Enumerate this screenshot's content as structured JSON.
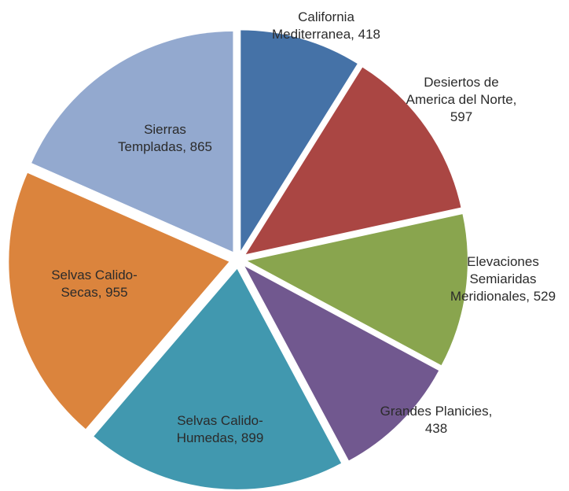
{
  "chart_data": {
    "type": "pie",
    "exploded": true,
    "title": "",
    "slices": [
      {
        "label": "California Mediterranea",
        "value": 418,
        "color": "#4572a7",
        "label_lines": [
          "California",
          "Mediterranea, 418"
        ]
      },
      {
        "label": "Desiertos de America del Norte",
        "value": 597,
        "color": "#aa4643",
        "label_lines": [
          "Desiertos de",
          "America del Norte,",
          "597"
        ]
      },
      {
        "label": "Elevaciones Semiaridas Meridionales",
        "value": 529,
        "color": "#89a54e",
        "label_lines": [
          "Elevaciones",
          "Semiaridas",
          "Meridionales, 529"
        ]
      },
      {
        "label": "Grandes Planicies",
        "value": 438,
        "color": "#71588f",
        "label_lines": [
          "Grandes Planicies,",
          "438"
        ]
      },
      {
        "label": "Selvas Calido-Humedas",
        "value": 899,
        "color": "#4198af",
        "label_lines": [
          "Selvas Calido-",
          "Humedas, 899"
        ]
      },
      {
        "label": "Selvas Calido-Secas",
        "value": 955,
        "color": "#db843d",
        "label_lines": [
          "Selvas Calido-",
          "Secas, 955"
        ]
      },
      {
        "label": "Sierras Templadas",
        "value": 865,
        "color": "#93a9cf",
        "label_lines": [
          "Sierras",
          "Templadas, 865"
        ]
      }
    ]
  }
}
